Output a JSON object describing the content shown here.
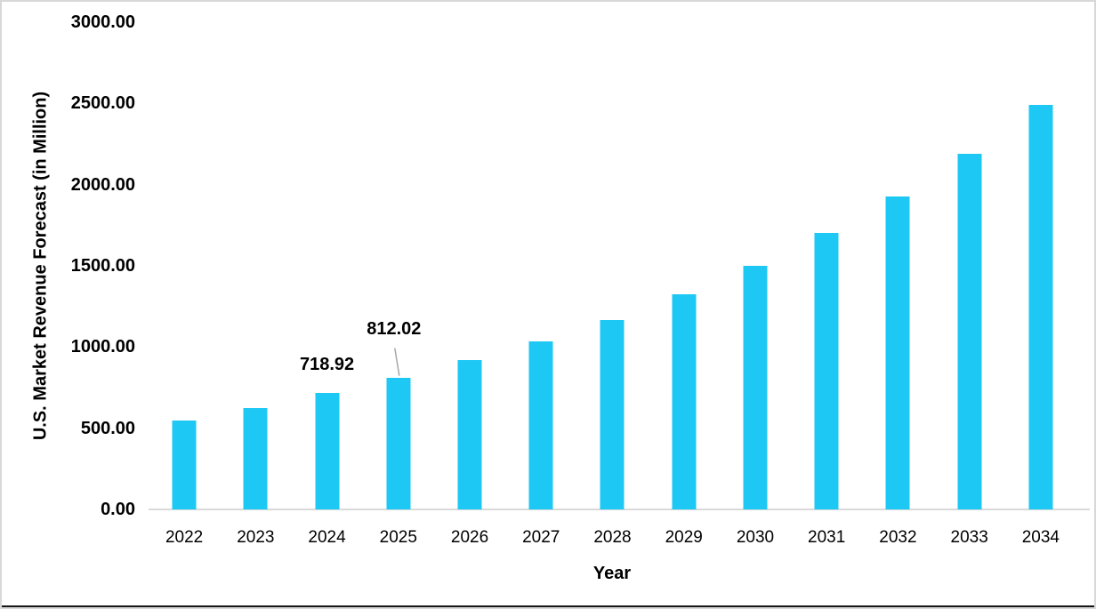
{
  "chart_data": {
    "type": "bar",
    "title": "",
    "xlabel": "Year",
    "ylabel": "U.S. Market Revenue Forecast (in Million)",
    "categories": [
      "2022",
      "2023",
      "2024",
      "2025",
      "2026",
      "2027",
      "2028",
      "2029",
      "2030",
      "2031",
      "2032",
      "2033",
      "2034"
    ],
    "values": [
      545,
      624,
      718.92,
      812.02,
      920,
      1035,
      1167,
      1325,
      1500,
      1703,
      1928,
      2191,
      2492
    ],
    "ylim": [
      0,
      3000
    ],
    "y_ticks": [
      {
        "label": "3000.00",
        "value": 3000
      },
      {
        "label": "2500.00",
        "value": 2500
      },
      {
        "label": "2000.00",
        "value": 2000
      },
      {
        "label": "1500.00",
        "value": 1500
      },
      {
        "label": "1000.00",
        "value": 1000
      },
      {
        "label": "500.00",
        "value": 500
      },
      {
        "label": "0.00",
        "value": 0
      }
    ],
    "grid": "off",
    "legend": "none",
    "data_labels": [
      {
        "category": "2024",
        "text": "718.92",
        "leader_line": false
      },
      {
        "category": "2025",
        "text": "812.02",
        "leader_line": true
      }
    ],
    "colors": {
      "bar": "#1ec8f4",
      "axis_line": "#d9d9d9",
      "leader_line": "#a6a6a6",
      "text": "#000000"
    }
  }
}
